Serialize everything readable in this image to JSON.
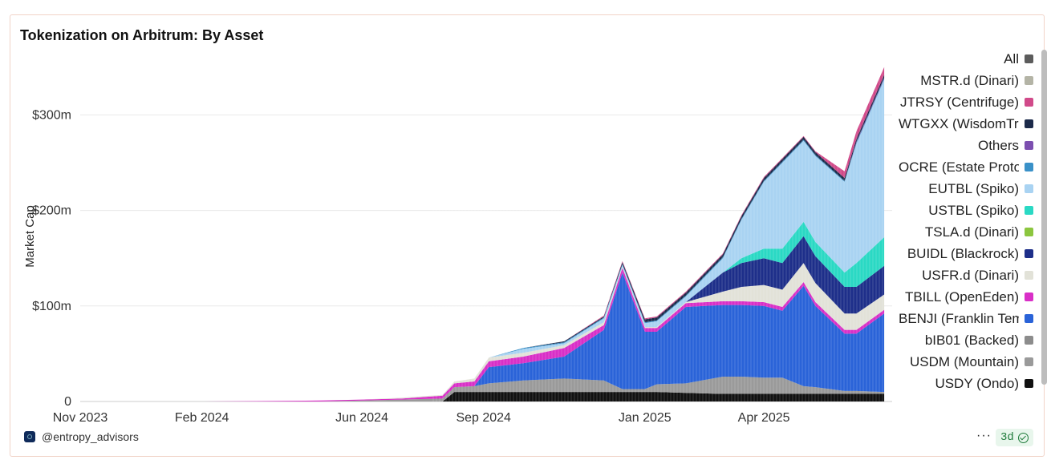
{
  "chart_data": {
    "type": "area",
    "title": "Tokenization on Arbitrum: By Asset",
    "ylabel": "Market Cap",
    "xlabel": "",
    "x_ticks": [
      "Nov 2023",
      "Feb 2024",
      "Jun 2024",
      "Sep 2024",
      "Jan 2025",
      "Apr 2025"
    ],
    "y_ticks": [
      "0",
      "$100m",
      "$200m",
      "$300m"
    ],
    "y_tick_values": [
      0,
      100,
      200,
      300
    ],
    "ylim": [
      0,
      370
    ],
    "xlim": [
      "2023-11-01",
      "2025-07-07"
    ],
    "unit": "$m",
    "stacked": true,
    "grid": true,
    "legend_position": "right",
    "x": [
      "2023-11-01",
      "2024-02-01",
      "2024-05-01",
      "2024-06-01",
      "2024-07-01",
      "2024-08-01",
      "2024-08-10",
      "2024-08-25",
      "2024-09-05",
      "2024-10-01",
      "2024-11-01",
      "2024-12-01",
      "2024-12-15",
      "2025-01-01",
      "2025-01-10",
      "2025-02-01",
      "2025-03-01",
      "2025-03-15",
      "2025-04-01",
      "2025-04-15",
      "2025-05-01",
      "2025-05-10",
      "2025-06-01",
      "2025-06-10",
      "2025-07-01"
    ],
    "series": [
      {
        "name": "USDY (Ondo)",
        "color": "#111111",
        "values": [
          0,
          0,
          0,
          0,
          0,
          0,
          10,
          10,
          10,
          10,
          10,
          10,
          10,
          10,
          10,
          9,
          8,
          8,
          8,
          8,
          8,
          8,
          8,
          8,
          8
        ]
      },
      {
        "name": "USDM (Mountain)",
        "color": "#9a9a9a",
        "values": [
          0,
          0,
          0,
          1,
          2,
          3,
          5,
          6,
          9,
          12,
          14,
          12,
          3,
          3,
          8,
          10,
          18,
          18,
          17,
          17,
          8,
          7,
          3,
          3,
          2
        ]
      },
      {
        "name": "bIB01 (Backed)",
        "color": "#8c8c8c",
        "values": [
          0,
          0,
          0,
          0,
          0,
          0,
          0,
          0,
          0,
          0,
          0,
          0,
          0,
          0,
          0,
          0,
          0,
          0,
          0,
          0,
          0,
          0,
          0,
          0,
          0
        ]
      },
      {
        "name": "BENJI (Franklin Templeton)",
        "color": "#2a63d8",
        "values": [
          0,
          0,
          0,
          0,
          0,
          0,
          0,
          0,
          17,
          18,
          23,
          53,
          122,
          60,
          55,
          80,
          75,
          75,
          75,
          70,
          105,
          85,
          60,
          60,
          82
        ]
      },
      {
        "name": "TBILL (OpenEden)",
        "color": "#d92fc7",
        "values": [
          0,
          0,
          1,
          1,
          1,
          3,
          4,
          5,
          6,
          7,
          9,
          5,
          5,
          4,
          4,
          4,
          4,
          4,
          4,
          4,
          4,
          4,
          4,
          4,
          4
        ]
      },
      {
        "name": "USFR.d (Dinari)",
        "color": "#e2e2d8",
        "values": [
          0,
          0,
          0,
          0,
          1,
          1,
          2,
          3,
          4,
          4,
          3,
          3,
          1,
          1,
          1,
          1,
          10,
          15,
          18,
          18,
          20,
          20,
          17,
          17,
          16
        ]
      },
      {
        "name": "BUIDL (Blackrock)",
        "color": "#1e2f8a",
        "values": [
          0,
          0,
          0,
          0,
          0,
          0,
          0,
          0,
          0,
          0,
          0,
          0,
          0,
          0,
          0,
          0,
          20,
          25,
          28,
          28,
          28,
          28,
          28,
          28,
          30
        ]
      },
      {
        "name": "TSLA.d (Dinari)",
        "color": "#8cc63f",
        "values": [
          0,
          0,
          0,
          0,
          0,
          0,
          0,
          0,
          0,
          0,
          0,
          0,
          0,
          0,
          0,
          0,
          0,
          0,
          0,
          0,
          0,
          0,
          0,
          0,
          0
        ]
      },
      {
        "name": "USTBL (Spiko)",
        "color": "#2ad9c4",
        "values": [
          0,
          0,
          0,
          0,
          0,
          0,
          0,
          0,
          0,
          0,
          0,
          0,
          0,
          0,
          0,
          0,
          0,
          5,
          10,
          15,
          15,
          15,
          15,
          25,
          30
        ]
      },
      {
        "name": "EUTBL (Spiko)",
        "color": "#a9d3f2",
        "values": [
          0,
          0,
          0,
          0,
          0,
          0,
          0,
          0,
          0,
          4,
          2,
          4,
          2,
          4,
          6,
          6,
          15,
          40,
          70,
          90,
          85,
          90,
          95,
          125,
          165
        ]
      },
      {
        "name": "OCRE (Estate Protocol)",
        "color": "#3a91c8",
        "values": [
          0,
          0,
          0,
          0,
          0,
          0,
          0,
          0,
          0,
          1,
          1,
          1,
          1,
          1,
          1,
          1,
          1,
          1,
          1,
          1,
          1,
          1,
          1,
          1,
          1
        ]
      },
      {
        "name": "Others",
        "color": "#7c4fb0",
        "values": [
          0,
          0,
          0,
          0,
          0,
          0,
          0,
          0,
          0,
          0,
          0,
          0,
          0,
          0,
          0,
          0,
          0,
          0,
          0,
          0,
          0,
          0,
          0,
          1,
          1
        ]
      },
      {
        "name": "WTGXX (WisdomTree)",
        "color": "#1c2a4a",
        "values": [
          0,
          0,
          0,
          0,
          0,
          0,
          0,
          0,
          0,
          0,
          1,
          1,
          2,
          3,
          3,
          3,
          3,
          3,
          3,
          3,
          3,
          3,
          3,
          3,
          3
        ]
      },
      {
        "name": "JTRSY (Centrifuge)",
        "color": "#d14a8a",
        "values": [
          0,
          0,
          0,
          0,
          0,
          0,
          0,
          0,
          0,
          0,
          0,
          1,
          1,
          1,
          1,
          1,
          1,
          1,
          1,
          1,
          1,
          1,
          7,
          8,
          8
        ]
      },
      {
        "name": "MSTR.d (Dinari)",
        "color": "#b4b4a6",
        "values": [
          0,
          0,
          0,
          0,
          0,
          0,
          0,
          0,
          0,
          0,
          0,
          0,
          0,
          0,
          0,
          0,
          0,
          0,
          0,
          0,
          0,
          0,
          0,
          0,
          0
        ]
      },
      {
        "name": "All",
        "color": "#5c5c5c",
        "values": [
          0,
          0,
          0,
          0,
          0,
          0,
          0,
          0,
          0,
          0,
          0,
          0,
          0,
          0,
          0,
          0,
          0,
          0,
          0,
          0,
          0,
          0,
          0,
          0,
          0
        ]
      }
    ]
  },
  "legend": [
    {
      "label": "All",
      "color": "#5c5c5c"
    },
    {
      "label": "MSTR.d (Dinari)",
      "color": "#b4b4a6"
    },
    {
      "label": "JTRSY (Centrifuge)",
      "color": "#d14a8a"
    },
    {
      "label": "WTGXX (WisdomTree)",
      "color": "#1c2a4a"
    },
    {
      "label": "Others",
      "color": "#7c4fb0"
    },
    {
      "label": "OCRE (Estate Protocol)",
      "color": "#3a91c8"
    },
    {
      "label": "EUTBL (Spiko)",
      "color": "#a9d3f2"
    },
    {
      "label": "USTBL (Spiko)",
      "color": "#2ad9c4"
    },
    {
      "label": "TSLA.d (Dinari)",
      "color": "#8cc63f"
    },
    {
      "label": "BUIDL (Blackrock)",
      "color": "#1e2f8a"
    },
    {
      "label": "USFR.d (Dinari)",
      "color": "#e2e2d8"
    },
    {
      "label": "TBILL (OpenEden)",
      "color": "#d92fc7"
    },
    {
      "label": "BENJI (Franklin Templeton)",
      "color": "#2a63d8"
    },
    {
      "label": "bIB01 (Backed)",
      "color": "#8c8c8c"
    },
    {
      "label": "USDM (Mountain)",
      "color": "#9a9a9a"
    },
    {
      "label": "USDY (Ondo)",
      "color": "#111111"
    }
  ],
  "footer": {
    "brand": "@entropy_advisors",
    "more": "···",
    "age": "3d"
  },
  "colors": {
    "card_border": "#f1d3c8",
    "grid": "#e8e8e8",
    "badge_bg": "#e8f6ec",
    "badge_text": "#1e7a3a"
  }
}
